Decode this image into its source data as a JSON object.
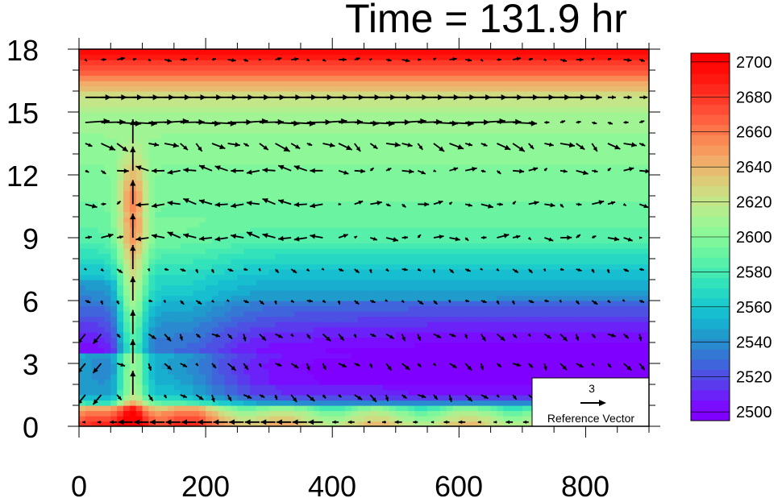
{
  "chart_data": {
    "type": "heatmap",
    "title": "Time = 131.9 hr",
    "xlim": [
      0,
      900
    ],
    "ylim": [
      0,
      18
    ],
    "x_ticks": [
      "0",
      "200",
      "400",
      "600",
      "800"
    ],
    "y_ticks": [
      "0",
      "3",
      "6",
      "9",
      "12",
      "15",
      "18"
    ],
    "colorbar": {
      "labels": [
        "2500",
        "2520",
        "2540",
        "2560",
        "2580",
        "2600",
        "2620",
        "2640",
        "2660",
        "2680",
        "2700"
      ],
      "levels": [
        2495,
        2500,
        2505,
        2510,
        2515,
        2520,
        2525,
        2530,
        2535,
        2540,
        2545,
        2550,
        2555,
        2560,
        2565,
        2570,
        2575,
        2580,
        2585,
        2590,
        2595,
        2600,
        2605,
        2610,
        2615,
        2620,
        2625,
        2630,
        2635,
        2640,
        2645,
        2650,
        2655,
        2660,
        2665,
        2670,
        2675,
        2680,
        2685,
        2690,
        2695,
        2700,
        2705
      ],
      "colors": [
        "#8000ff",
        "#7a0cff",
        "#6b22f8",
        "#5b3aee",
        "#4e50e4",
        "#4064dc",
        "#3478d4",
        "#2a8ad0",
        "#1f9ccc",
        "#18aed0",
        "#16bed0",
        "#1ccccc",
        "#26d8c4",
        "#32e2ba",
        "#44eab2",
        "#56f0aa",
        "#6af4a2",
        "#7ef69c",
        "#8ef898",
        "#a0f494",
        "#b2ee8e",
        "#c2e688",
        "#d0da80",
        "#dccc78",
        "#e8bc70",
        "#f0ac68",
        "#f69a5e",
        "#fa8854",
        "#fc744a",
        "#fe6040",
        "#ff4c34",
        "#ff3a28",
        "#ff281c",
        "#ff1810",
        "#ff0a06",
        "#ff0000"
      ]
    },
    "reference_vector": {
      "magnitude": "3",
      "label": "Reference Vector"
    },
    "vertical_profile_km": [
      {
        "y": 0,
        "value": 2600
      },
      {
        "y": 0.7,
        "value": 2570
      },
      {
        "y": 1.5,
        "value": 2505
      },
      {
        "y": 3,
        "value": 2502
      },
      {
        "y": 4.5,
        "value": 2518
      },
      {
        "y": 6,
        "value": 2540
      },
      {
        "y": 7.5,
        "value": 2560
      },
      {
        "y": 9,
        "value": 2585
      },
      {
        "y": 11,
        "value": 2596
      },
      {
        "y": 13,
        "value": 2601
      },
      {
        "y": 15,
        "value": 2612
      },
      {
        "y": 16,
        "value": 2630
      },
      {
        "y": 17,
        "value": 2670
      },
      {
        "y": 18,
        "value": 2700
      }
    ]
  }
}
